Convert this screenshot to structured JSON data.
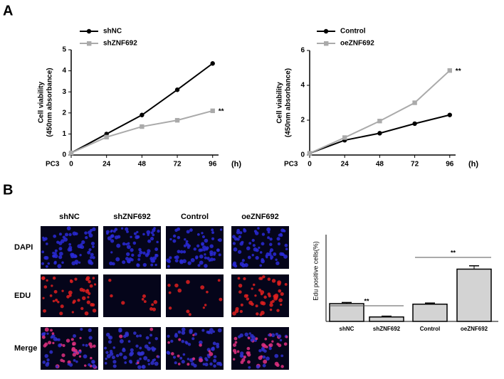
{
  "panels": [
    "A",
    "B"
  ],
  "image_grid": {
    "columns": [
      "shNC",
      "shZNF692",
      "Control",
      "oeZNF692"
    ],
    "rows": [
      "DAPI",
      "EDU",
      "Merge"
    ]
  },
  "chart_data": [
    {
      "type": "line",
      "ylabel": [
        "Cell viability",
        "(450nm absorbance)"
      ],
      "xlabel": "(h)",
      "cell_line": "PC3",
      "x": [
        0,
        24,
        48,
        72,
        96
      ],
      "xlim": [
        0,
        100
      ],
      "xticks": [
        0,
        24,
        48,
        72,
        96
      ],
      "ylim": [
        0,
        5
      ],
      "yticks": [
        0,
        1,
        2,
        3,
        4,
        5
      ],
      "annotation": "**",
      "series": [
        {
          "name": "shNC",
          "color": "#000000",
          "marker": "circle",
          "values": [
            0.1,
            1.0,
            1.9,
            3.1,
            4.35
          ]
        },
        {
          "name": "shZNF692",
          "color": "#aaaaaa",
          "marker": "square",
          "values": [
            0.1,
            0.85,
            1.35,
            1.65,
            2.1
          ]
        }
      ]
    },
    {
      "type": "line",
      "ylabel": [
        "Cell viability",
        "(450nm absorbance)"
      ],
      "xlabel": "(h)",
      "cell_line": "PC3",
      "x": [
        0,
        24,
        48,
        72,
        96
      ],
      "xlim": [
        0,
        100
      ],
      "xticks": [
        0,
        24,
        48,
        72,
        96
      ],
      "ylim": [
        0,
        6
      ],
      "yticks": [
        0,
        2,
        4,
        6
      ],
      "annotation": "**",
      "series": [
        {
          "name": "Control",
          "color": "#000000",
          "marker": "circle",
          "values": [
            0.1,
            0.85,
            1.25,
            1.8,
            2.3
          ]
        },
        {
          "name": "oeZNF692",
          "color": "#aaaaaa",
          "marker": "square",
          "values": [
            0.1,
            1.0,
            1.95,
            3.0,
            4.85
          ]
        }
      ]
    },
    {
      "type": "bar",
      "ylabel": "Edu positive cells(%)",
      "categories": [
        "shNC",
        "shZNF692",
        "Control",
        "oeZNF692"
      ],
      "values": [
        16,
        4,
        15.5,
        47
      ],
      "errors": [
        1,
        0.7,
        1,
        3
      ],
      "color": "#d3d3d3",
      "ylim": [
        0,
        78
      ],
      "annotations": [
        "**",
        "**"
      ]
    }
  ]
}
